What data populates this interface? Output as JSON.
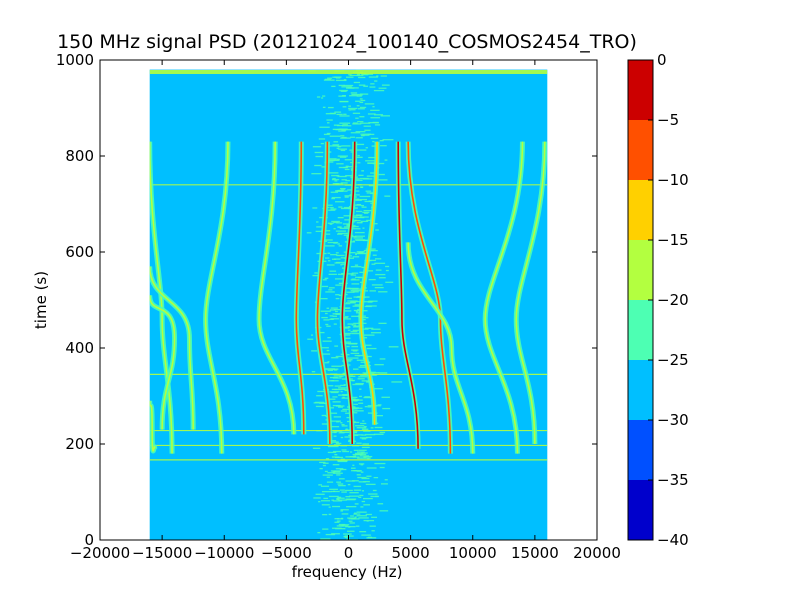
{
  "chart_data": {
    "type": "heatmap",
    "title": "150 MHz signal PSD (20121024_100140_COSMOS2454_TRO)",
    "xlabel": "frequency (Hz)",
    "ylabel": "time (s)",
    "xlim": [
      -20000,
      20000
    ],
    "ylim": [
      0,
      1000
    ],
    "x_ticks": [
      -20000,
      -15000,
      -10000,
      -5000,
      0,
      5000,
      10000,
      15000,
      20000
    ],
    "x_tick_labels": [
      "−20000",
      "−15000",
      "−10000",
      "−5000",
      "0",
      "5000",
      "10000",
      "15000",
      "20000"
    ],
    "y_ticks": [
      0,
      200,
      400,
      600,
      800,
      1000
    ],
    "y_tick_labels": [
      "0",
      "200",
      "400",
      "600",
      "800",
      "1000"
    ],
    "data_extent": {
      "freq": [
        -16000,
        16000
      ],
      "time": [
        0,
        980
      ]
    },
    "background_level": -27.5,
    "colorbar": {
      "levels": [
        -40,
        -35,
        -30,
        -25,
        -20,
        -15,
        -10,
        -5,
        0
      ],
      "tick_labels": [
        "−40",
        "−35",
        "−30",
        "−25",
        "−20",
        "−15",
        "−10",
        "−5",
        "0"
      ],
      "colors": [
        "#0000cc",
        "#0050ff",
        "#00bfff",
        "#4dffb3",
        "#b3ff40",
        "#ffd000",
        "#ff5000",
        "#cc0000"
      ]
    },
    "traces": [
      {
        "start": [
          500,
          830
        ],
        "mid": [
          -500,
          460
        ],
        "end": [
          300,
          200
        ],
        "level": -5
      },
      {
        "start": [
          -1700,
          830
        ],
        "mid": [
          -2500,
          460
        ],
        "end": [
          -1500,
          200
        ],
        "level": -10
      },
      {
        "start": [
          2300,
          830
        ],
        "mid": [
          1000,
          460
        ],
        "end": [
          2100,
          240
        ],
        "level": -15
      },
      {
        "start": [
          -3800,
          830
        ],
        "mid": [
          -4200,
          460
        ],
        "end": [
          -3600,
          220
        ],
        "level": -10
      },
      {
        "start": [
          -5900,
          830
        ],
        "mid": [
          -7200,
          460
        ],
        "end": [
          -4400,
          220
        ],
        "level": -20
      },
      {
        "start": [
          -9700,
          830
        ],
        "mid": [
          -11500,
          460
        ],
        "end": [
          -10200,
          180
        ],
        "level": -20
      },
      {
        "start": [
          -16000,
          830
        ],
        "mid": [
          -15000,
          460
        ],
        "end": [
          -14200,
          180
        ],
        "level": -20
      },
      {
        "start": [
          4000,
          830
        ],
        "mid": [
          4300,
          460
        ],
        "end": [
          5600,
          190
        ],
        "level": -5
      },
      {
        "start": [
          4800,
          830
        ],
        "mid": [
          7400,
          460
        ],
        "end": [
          8200,
          180
        ],
        "level": -10
      },
      {
        "start": [
          4800,
          620
        ],
        "mid": [
          8300,
          400
        ],
        "end": [
          10000,
          180
        ],
        "level": -20
      },
      {
        "start": [
          14000,
          830
        ],
        "mid": [
          11000,
          460
        ],
        "end": [
          13600,
          180
        ],
        "level": -20
      },
      {
        "start": [
          15800,
          830
        ],
        "mid": [
          13500,
          460
        ],
        "end": [
          15000,
          200
        ],
        "level": -20
      },
      {
        "start": [
          -16000,
          570
        ],
        "mid": [
          -12800,
          420
        ],
        "end": [
          -12500,
          230
        ],
        "level": -20
      },
      {
        "start": [
          -16000,
          510
        ],
        "mid": [
          -14000,
          420
        ],
        "end": [
          -15000,
          230
        ],
        "level": -20
      },
      {
        "start": [
          -16000,
          290
        ],
        "mid": [
          -15800,
          230
        ],
        "end": [
          -15600,
          190
        ],
        "level": -20
      }
    ],
    "horizontal_lines": [
      {
        "time": 975,
        "level": -20
      },
      {
        "time": 740,
        "level": -20
      },
      {
        "time": 345,
        "level": -20
      },
      {
        "time": 228,
        "level": -20
      },
      {
        "time": 197,
        "level": -20
      },
      {
        "time": 167,
        "level": -20
      }
    ]
  }
}
